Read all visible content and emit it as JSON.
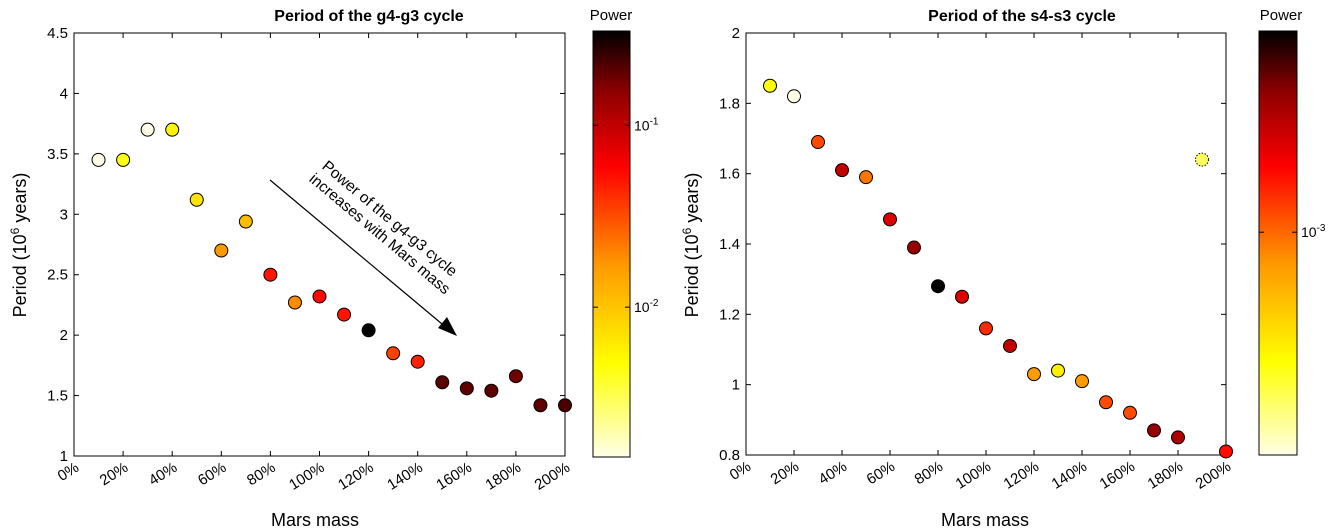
{
  "colors": {
    "colormap_low": "#ffffe8",
    "colormap_yellow": "#ffff00",
    "colormap_orange": "#ff9900",
    "colormap_red": "#ff0000",
    "colormap_darkred": "#8b0000",
    "colormap_high": "#000000"
  },
  "chart_data": [
    {
      "type": "scatter",
      "title": "Period of the g4-g3 cycle",
      "xlabel": "Mars mass",
      "ylabel_main": "Period (10",
      "ylabel_sup": "6",
      "ylabel_end": " years)",
      "xlim": [
        0,
        200
      ],
      "ylim": [
        1,
        4.5
      ],
      "xticks": [
        0,
        20,
        40,
        60,
        80,
        100,
        120,
        140,
        160,
        180,
        200
      ],
      "xtick_labels": [
        "0%",
        "20%",
        "40%",
        "60%",
        "80%",
        "100%",
        "120%",
        "140%",
        "160%",
        "180%",
        "200%"
      ],
      "yticks": [
        1,
        1.5,
        2,
        2.5,
        3,
        3.5,
        4,
        4.5
      ],
      "ytick_labels": [
        "1",
        "1.5",
        "2",
        "2.5",
        "3",
        "3.5",
        "4",
        "4.5"
      ],
      "colorbar": {
        "label": "Power",
        "scale": "log",
        "range": [
          0.0015,
          0.33
        ],
        "ticks": [
          {
            "value": 0.1,
            "base": "10",
            "exp": "-1"
          },
          {
            "value": 0.01,
            "base": "10",
            "exp": "-2"
          }
        ]
      },
      "annotation": {
        "lines": [
          "Power of the g4-g3 cycle",
          "increases with Mars mass"
        ]
      },
      "points": [
        {
          "x": 10,
          "y": 3.45,
          "power": 0.0015
        },
        {
          "x": 20,
          "y": 3.45,
          "power": 0.0045
        },
        {
          "x": 30,
          "y": 3.7,
          "power": 0.0015
        },
        {
          "x": 40,
          "y": 3.7,
          "power": 0.0055
        },
        {
          "x": 50,
          "y": 3.12,
          "power": 0.0068
        },
        {
          "x": 60,
          "y": 2.7,
          "power": 0.017
        },
        {
          "x": 70,
          "y": 2.94,
          "power": 0.011
        },
        {
          "x": 80,
          "y": 2.5,
          "power": 0.05
        },
        {
          "x": 90,
          "y": 2.27,
          "power": 0.019
        },
        {
          "x": 100,
          "y": 2.32,
          "power": 0.055
        },
        {
          "x": 110,
          "y": 2.17,
          "power": 0.05
        },
        {
          "x": 120,
          "y": 2.04,
          "power": 0.33
        },
        {
          "x": 130,
          "y": 1.85,
          "power": 0.035
        },
        {
          "x": 140,
          "y": 1.78,
          "power": 0.045
        },
        {
          "x": 150,
          "y": 1.61,
          "power": 0.2
        },
        {
          "x": 160,
          "y": 1.56,
          "power": 0.2
        },
        {
          "x": 170,
          "y": 1.54,
          "power": 0.2
        },
        {
          "x": 180,
          "y": 1.66,
          "power": 0.18
        },
        {
          "x": 190,
          "y": 1.42,
          "power": 0.2
        },
        {
          "x": 200,
          "y": 1.42,
          "power": 0.22
        }
      ]
    },
    {
      "type": "scatter",
      "title": "Period of the s4-s3 cycle",
      "xlabel": "Mars mass",
      "ylabel_main": "Period (10",
      "ylabel_sup": "6",
      "ylabel_end": " years)",
      "xlim": [
        0,
        200
      ],
      "ylim": [
        0.8,
        2
      ],
      "xticks": [
        0,
        20,
        40,
        60,
        80,
        100,
        120,
        140,
        160,
        180,
        200
      ],
      "xtick_labels": [
        "0%",
        "20%",
        "40%",
        "60%",
        "80%",
        "100%",
        "120%",
        "140%",
        "160%",
        "180%",
        "200%"
      ],
      "yticks": [
        0.8,
        1,
        1.2,
        1.4,
        1.6,
        1.8,
        2
      ],
      "ytick_labels": [
        "0.8",
        "1",
        "1.2",
        "1.4",
        "1.6",
        "1.8",
        "2"
      ],
      "colorbar": {
        "label": "Power",
        "scale": "log",
        "range": [
          0.0001,
          0.008
        ],
        "ticks": [
          {
            "value": 0.001,
            "base": "10",
            "exp": "-3"
          }
        ]
      },
      "points": [
        {
          "x": 10,
          "y": 1.85,
          "power": 0.00025
        },
        {
          "x": 20,
          "y": 1.82,
          "power": 0.0001
        },
        {
          "x": 30,
          "y": 1.69,
          "power": 0.0012
        },
        {
          "x": 40,
          "y": 1.61,
          "power": 0.003
        },
        {
          "x": 50,
          "y": 1.59,
          "power": 0.0009
        },
        {
          "x": 60,
          "y": 1.47,
          "power": 0.0025
        },
        {
          "x": 70,
          "y": 1.39,
          "power": 0.004
        },
        {
          "x": 80,
          "y": 1.28,
          "power": 0.008
        },
        {
          "x": 90,
          "y": 1.25,
          "power": 0.0025
        },
        {
          "x": 100,
          "y": 1.16,
          "power": 0.0015
        },
        {
          "x": 110,
          "y": 1.11,
          "power": 0.003
        },
        {
          "x": 120,
          "y": 1.03,
          "power": 0.0007
        },
        {
          "x": 130,
          "y": 1.04,
          "power": 0.0003
        },
        {
          "x": 140,
          "y": 1.01,
          "power": 0.0007
        },
        {
          "x": 150,
          "y": 0.95,
          "power": 0.0012
        },
        {
          "x": 160,
          "y": 0.92,
          "power": 0.0012
        },
        {
          "x": 170,
          "y": 0.87,
          "power": 0.004
        },
        {
          "x": 180,
          "y": 0.85,
          "power": 0.0035
        },
        {
          "x": 190,
          "y": 1.64,
          "power": 0.00018,
          "dotted": true
        },
        {
          "x": 200,
          "y": 0.81,
          "power": 0.0018
        }
      ]
    }
  ]
}
